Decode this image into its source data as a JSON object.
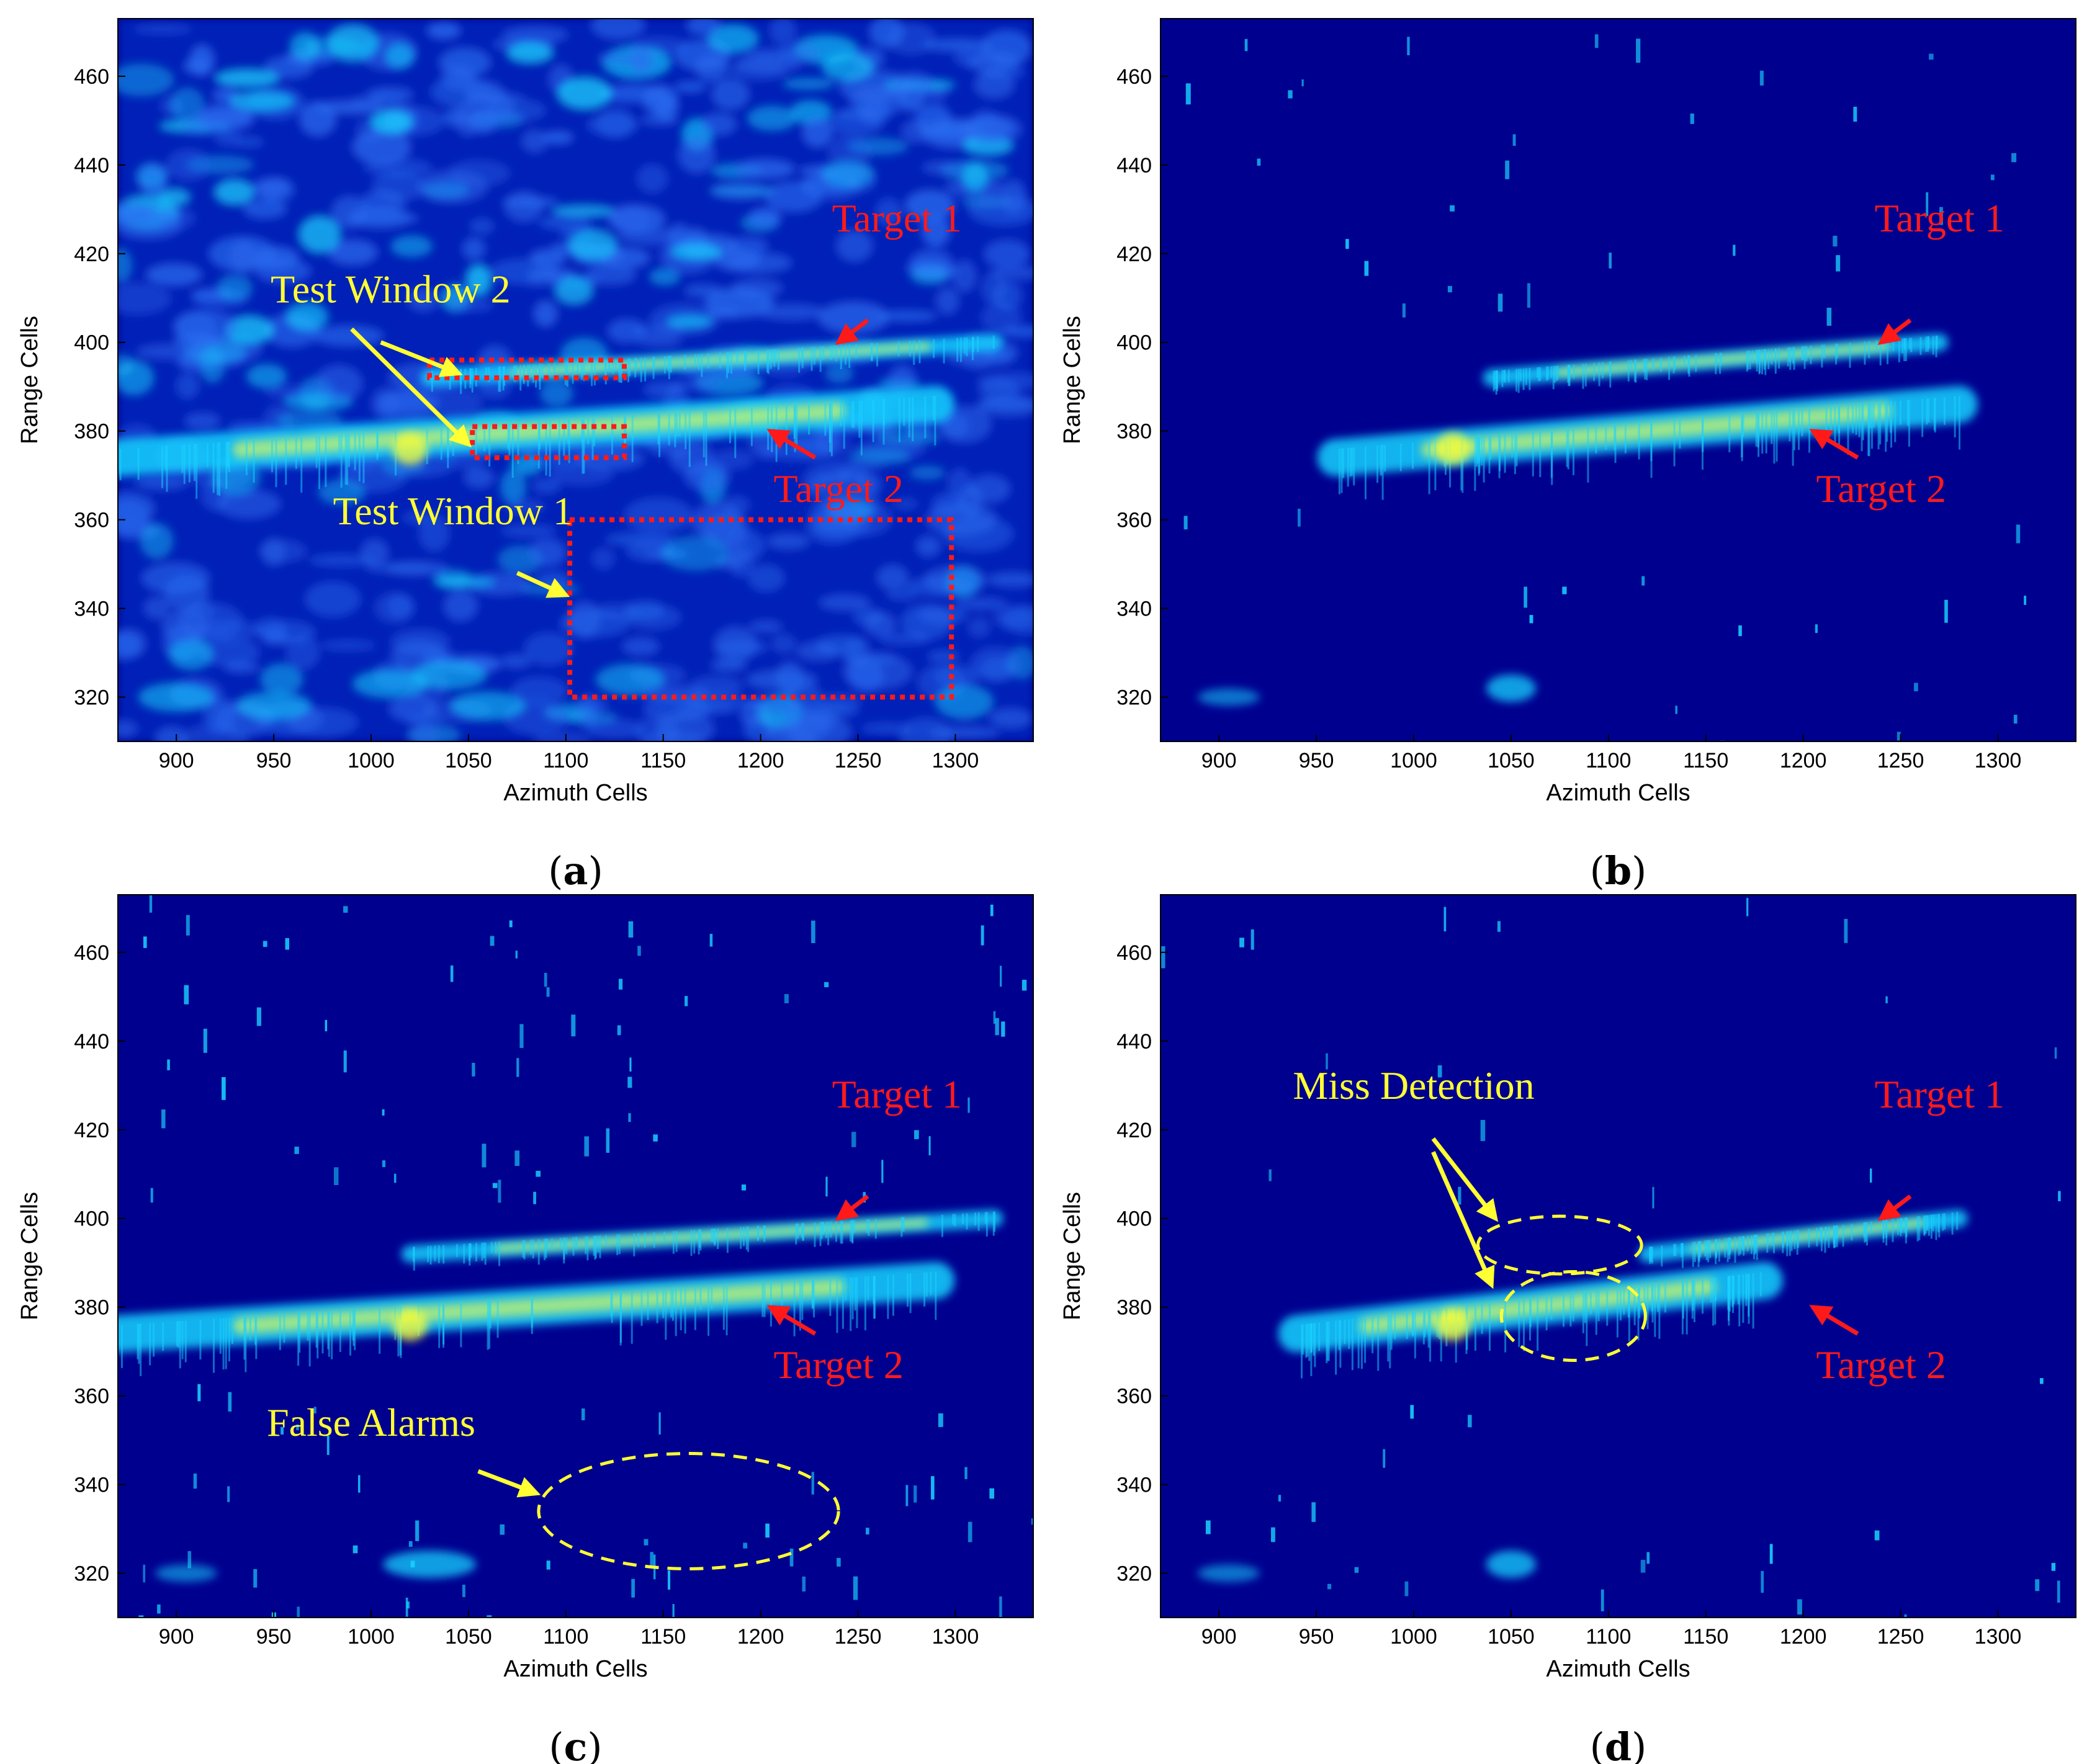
{
  "colors": {
    "background": "#00008f",
    "noise": "#0a3cd8",
    "cyan": "#19d3ff",
    "yellow": "#ffff33",
    "red_annotation": "#ff1a1a",
    "yellow_annotation": "#ffff33"
  },
  "chart_data": [
    {
      "type": "heatmap",
      "panel": "a",
      "caption": "a",
      "xlabel": "Azimuth Cells",
      "ylabel": "Range Cells",
      "xlim": [
        870,
        1340
      ],
      "ylim": [
        310,
        473
      ],
      "xticks": [
        900,
        950,
        1000,
        1050,
        1100,
        1150,
        1200,
        1250,
        1300
      ],
      "yticks": [
        320,
        340,
        360,
        380,
        400,
        420,
        440,
        460
      ],
      "clutter": "dense",
      "targets": [
        {
          "name": "Target 1",
          "from": [
            1030,
            392
          ],
          "to": [
            1320,
            400
          ]
        },
        {
          "name": "Target 2",
          "from": [
            870,
            374
          ],
          "to": [
            1290,
            386
          ]
        }
      ],
      "annotations": [
        {
          "kind": "text",
          "text": "Target 1",
          "color": "red",
          "at": [
            1270,
            425
          ]
        },
        {
          "kind": "text",
          "text": "Target 2",
          "color": "red",
          "at": [
            1240,
            364
          ]
        },
        {
          "kind": "text",
          "text": "Test Window 2",
          "color": "yellow",
          "at": [
            1010,
            409
          ]
        },
        {
          "kind": "text",
          "text": "Test Window 1",
          "color": "yellow",
          "at": [
            1042,
            359
          ]
        },
        {
          "kind": "rect",
          "color": "red",
          "dashed": true,
          "x": [
            1030,
            1130
          ],
          "y": [
            392,
            396
          ]
        },
        {
          "kind": "rect",
          "color": "red",
          "dashed": true,
          "x": [
            1052,
            1130
          ],
          "y": [
            374,
            381
          ]
        },
        {
          "kind": "rect",
          "color": "red",
          "dashed": true,
          "x": [
            1102,
            1298
          ],
          "y": [
            320,
            360
          ]
        },
        {
          "kind": "arrow",
          "color": "red",
          "from": [
            1255,
            405
          ],
          "to": [
            1240,
            400
          ]
        },
        {
          "kind": "arrow",
          "color": "red",
          "from": [
            1228,
            374
          ],
          "to": [
            1205,
            380
          ]
        },
        {
          "kind": "arrow",
          "color": "yellow",
          "from": [
            1005,
            400
          ],
          "to": [
            1045,
            393
          ]
        },
        {
          "kind": "arrow",
          "color": "yellow",
          "from": [
            990,
            403
          ],
          "to": [
            1050,
            377
          ]
        },
        {
          "kind": "arrow",
          "color": "yellow",
          "from": [
            1075,
            348
          ],
          "to": [
            1100,
            343
          ]
        }
      ]
    },
    {
      "type": "heatmap",
      "panel": "b",
      "caption": "b",
      "xlabel": "Azimuth Cells",
      "ylabel": "Range Cells",
      "xlim": [
        870,
        1340
      ],
      "ylim": [
        310,
        473
      ],
      "xticks": [
        900,
        950,
        1000,
        1050,
        1100,
        1150,
        1200,
        1250,
        1300
      ],
      "yticks": [
        320,
        340,
        360,
        380,
        400,
        420,
        440,
        460
      ],
      "clutter": "sparse",
      "targets": [
        {
          "name": "Target 1",
          "from": [
            1040,
            392
          ],
          "to": [
            1270,
            400
          ]
        },
        {
          "name": "Target 2",
          "from": [
            960,
            374
          ],
          "to": [
            1280,
            386
          ]
        }
      ],
      "annotations": [
        {
          "kind": "text",
          "text": "Target 1",
          "color": "red",
          "at": [
            1270,
            425
          ]
        },
        {
          "kind": "text",
          "text": "Target 2",
          "color": "red",
          "at": [
            1240,
            364
          ]
        },
        {
          "kind": "arrow",
          "color": "red",
          "from": [
            1255,
            405
          ],
          "to": [
            1240,
            400
          ]
        },
        {
          "kind": "arrow",
          "color": "red",
          "from": [
            1228,
            374
          ],
          "to": [
            1205,
            380
          ]
        }
      ]
    },
    {
      "type": "heatmap",
      "panel": "c",
      "caption": "c",
      "xlabel": "Azimuth Cells",
      "ylabel": "Range Cells",
      "xlim": [
        870,
        1340
      ],
      "ylim": [
        310,
        473
      ],
      "xticks": [
        900,
        950,
        1000,
        1050,
        1100,
        1150,
        1200,
        1250,
        1300
      ],
      "yticks": [
        320,
        340,
        360,
        380,
        400,
        420,
        440,
        460
      ],
      "clutter": "moderate",
      "targets": [
        {
          "name": "Target 1",
          "from": [
            1020,
            392
          ],
          "to": [
            1320,
            400
          ]
        },
        {
          "name": "Target 2",
          "from": [
            870,
            374
          ],
          "to": [
            1290,
            386
          ]
        }
      ],
      "annotations": [
        {
          "kind": "text",
          "text": "Target 1",
          "color": "red",
          "at": [
            1270,
            425
          ]
        },
        {
          "kind": "text",
          "text": "Target 2",
          "color": "red",
          "at": [
            1240,
            364
          ]
        },
        {
          "kind": "text",
          "text": "False Alarms",
          "color": "yellow",
          "at": [
            1000,
            351
          ]
        },
        {
          "kind": "arrow",
          "color": "red",
          "from": [
            1255,
            405
          ],
          "to": [
            1240,
            400
          ]
        },
        {
          "kind": "arrow",
          "color": "red",
          "from": [
            1228,
            374
          ],
          "to": [
            1205,
            380
          ]
        },
        {
          "kind": "arrow",
          "color": "yellow",
          "from": [
            1055,
            343
          ],
          "to": [
            1085,
            338
          ]
        },
        {
          "kind": "ellipse",
          "color": "yellow",
          "dashed": true,
          "center": [
            1163,
            334
          ],
          "radii": [
            77,
            13
          ]
        }
      ]
    },
    {
      "type": "heatmap",
      "panel": "d",
      "caption": "d",
      "xlabel": "Azimuth Cells",
      "ylabel": "Range Cells",
      "xlim": [
        870,
        1340
      ],
      "ylim": [
        310,
        473
      ],
      "xticks": [
        900,
        950,
        1000,
        1050,
        1100,
        1150,
        1200,
        1250,
        1300
      ],
      "yticks": [
        320,
        340,
        360,
        380,
        400,
        420,
        440,
        460
      ],
      "clutter": "sparse",
      "targets": [
        {
          "name": "Target 1",
          "from": [
            1120,
            392
          ],
          "to": [
            1280,
            400
          ]
        },
        {
          "name": "Target 2",
          "from": [
            940,
            374
          ],
          "to": [
            1180,
            386
          ]
        }
      ],
      "annotations": [
        {
          "kind": "text",
          "text": "Target 1",
          "color": "red",
          "at": [
            1270,
            425
          ]
        },
        {
          "kind": "text",
          "text": "Target 2",
          "color": "red",
          "at": [
            1240,
            364
          ]
        },
        {
          "kind": "text",
          "text": "Miss Detection",
          "color": "yellow",
          "at": [
            1000,
            427
          ]
        },
        {
          "kind": "arrow",
          "color": "red",
          "from": [
            1255,
            405
          ],
          "to": [
            1240,
            400
          ]
        },
        {
          "kind": "arrow",
          "color": "red",
          "from": [
            1228,
            374
          ],
          "to": [
            1205,
            380
          ]
        },
        {
          "kind": "arrow",
          "color": "yellow",
          "from": [
            1010,
            418
          ],
          "to": [
            1042,
            400
          ]
        },
        {
          "kind": "arrow",
          "color": "yellow",
          "from": [
            1010,
            415
          ],
          "to": [
            1040,
            385
          ]
        },
        {
          "kind": "ellipse",
          "color": "yellow",
          "dashed": true,
          "center": [
            1075,
            394
          ],
          "radii": [
            42,
            6.5
          ]
        },
        {
          "kind": "ellipse",
          "color": "yellow",
          "dashed": true,
          "center": [
            1082,
            378
          ],
          "radii": [
            37,
            10
          ]
        }
      ]
    }
  ]
}
